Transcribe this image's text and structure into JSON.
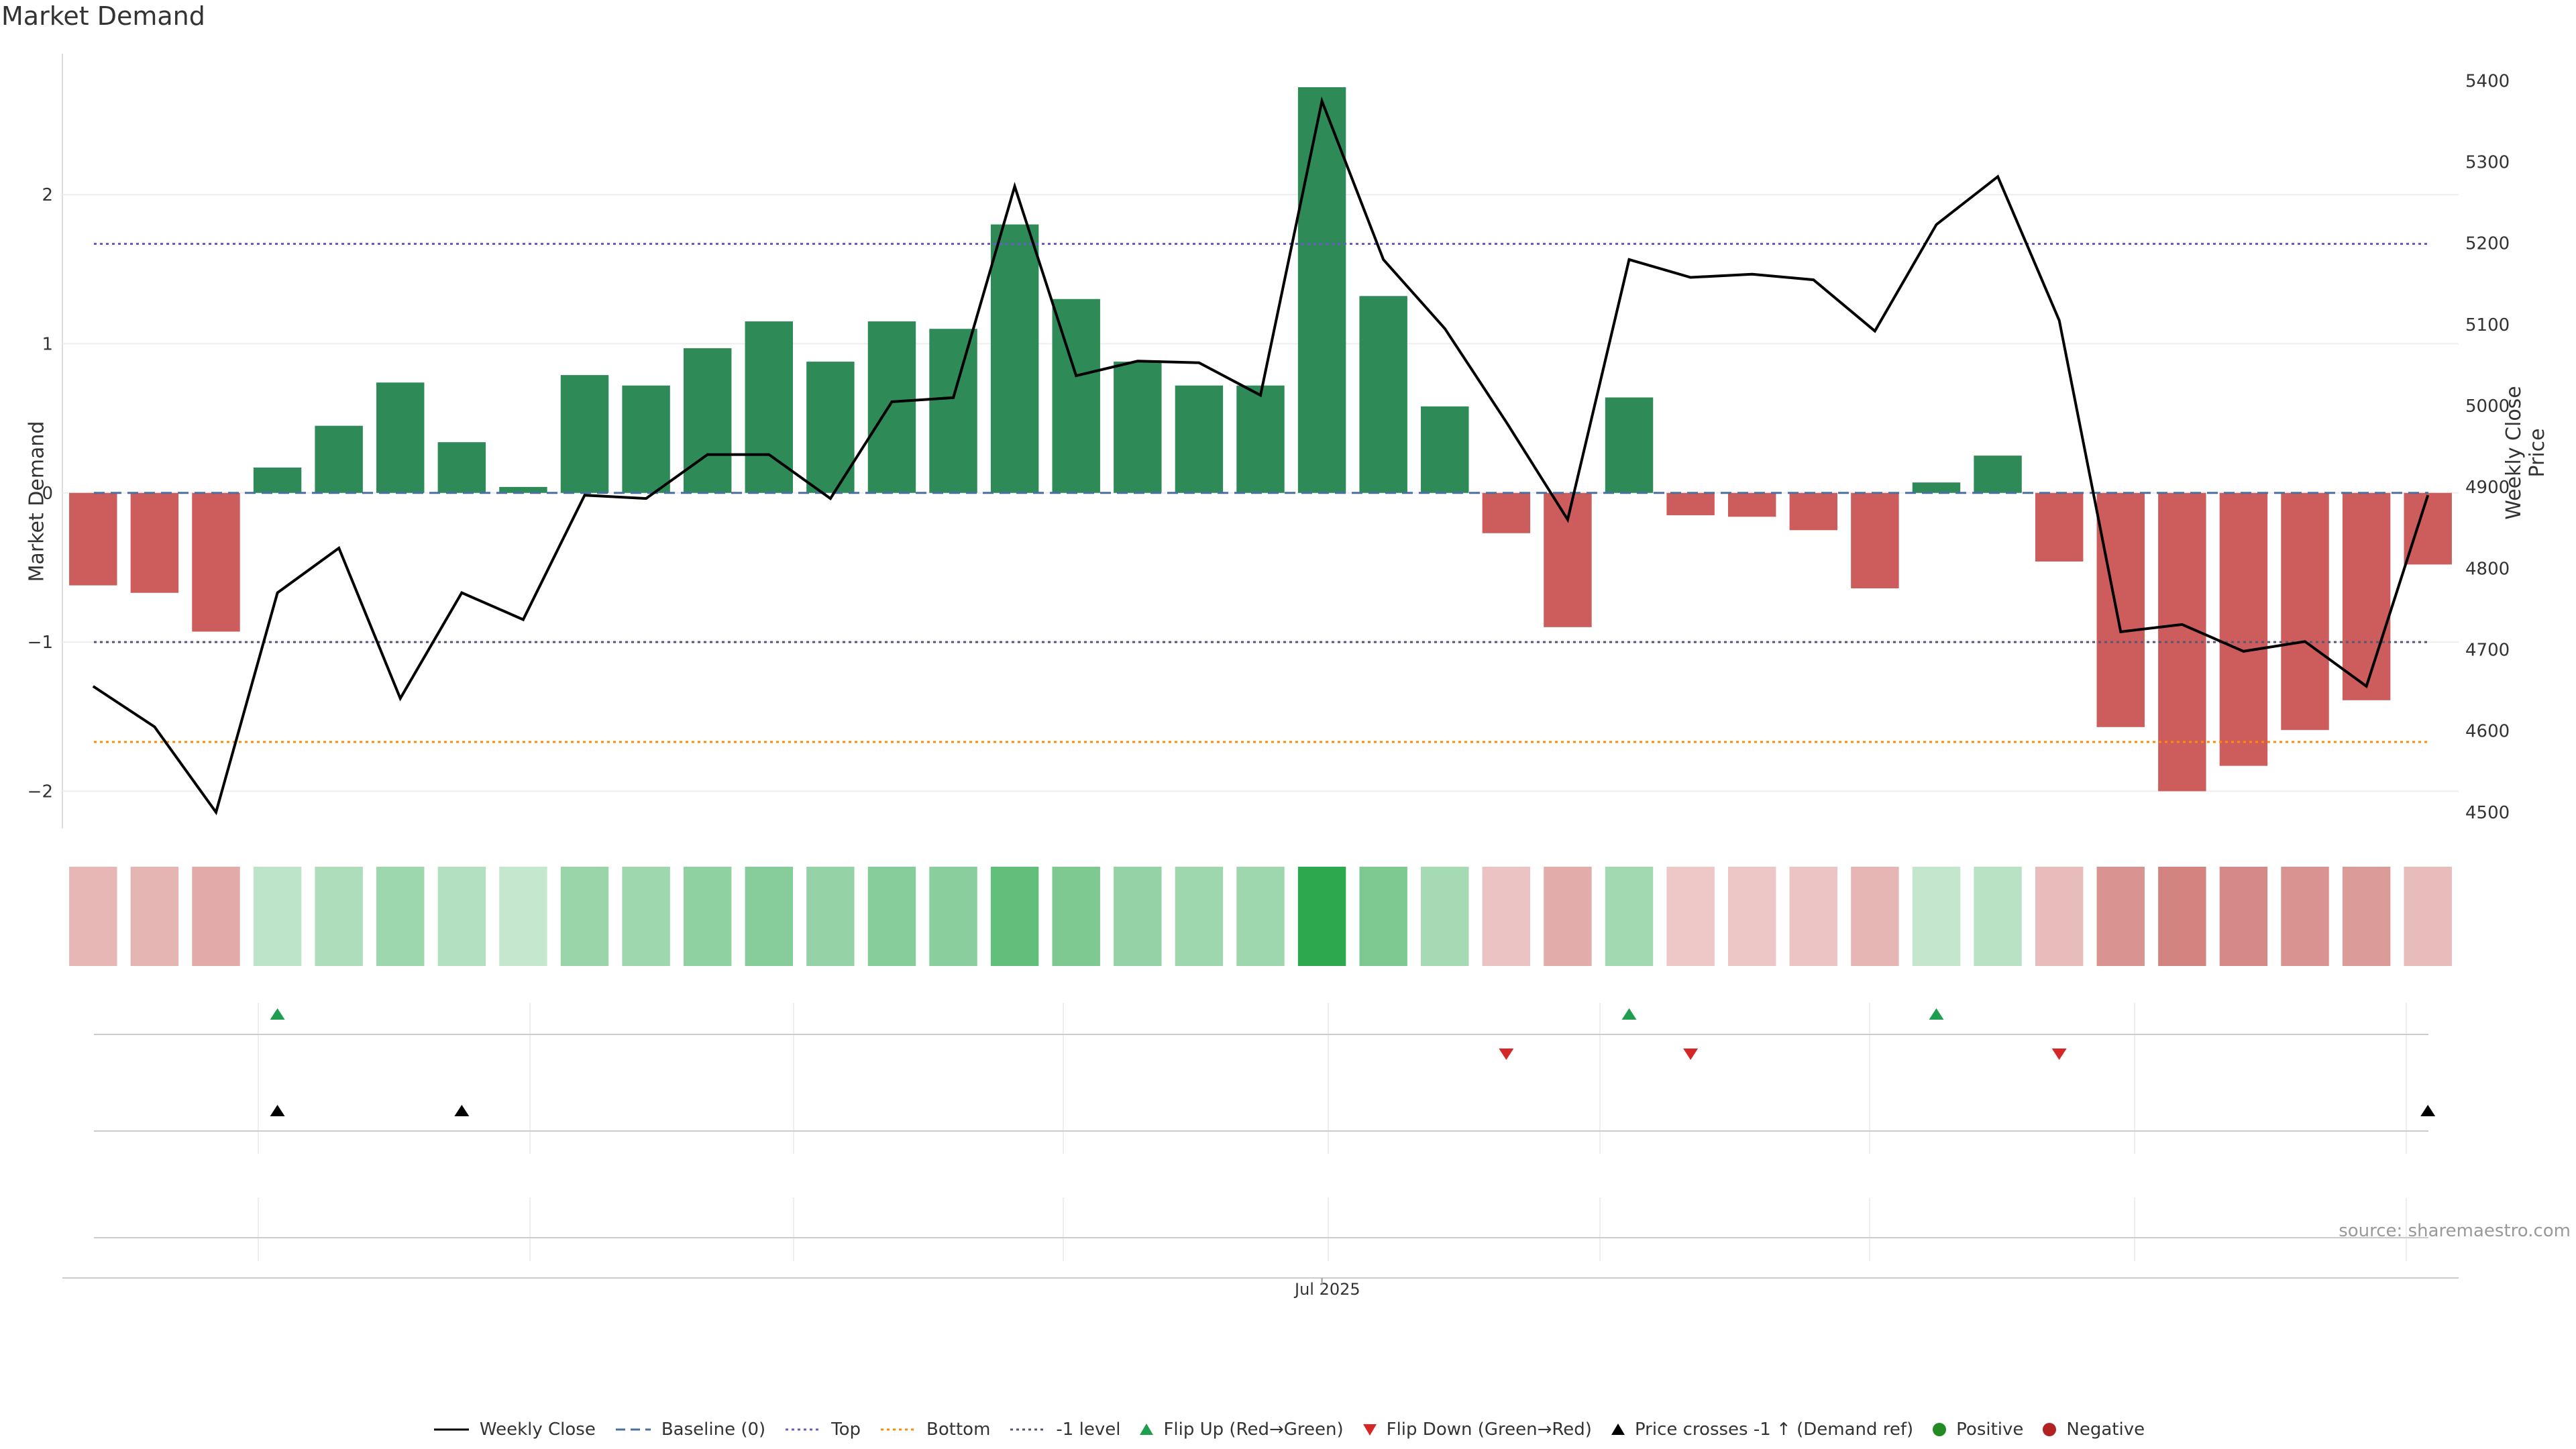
{
  "title": "Market Demand",
  "source": "source: sharemaestro.com",
  "colors": {
    "positive": "#2e8b57",
    "negative": "#cd5c5c",
    "price": "#000000",
    "baseline": "#4a6fa5",
    "top": "#6a5acd",
    "bottom": "#ff8c00",
    "minus_one": "#555577",
    "flip_up": "#1f9e4f",
    "flip_down": "#d62728",
    "cross": "#000000",
    "pos_dot": "#228b22",
    "neg_dot": "#b22222"
  },
  "chart_data": {
    "type": "bar",
    "title": "Market Demand",
    "ylabel": "Market Demand",
    "y2label": "Weekly Close Price",
    "ylim": [
      -2.25,
      2.9
    ],
    "y2lim": [
      4480,
      5425
    ],
    "yticks": [
      -2,
      -1,
      0,
      1,
      2
    ],
    "y2ticks": [
      4500,
      4600,
      4700,
      4800,
      4900,
      5000,
      5100,
      5200,
      5300,
      5400
    ],
    "xtick_labels": [
      {
        "label": "Jul 2025",
        "index": 20.5
      }
    ],
    "demand": [
      -0.62,
      -0.67,
      -0.93,
      0.17,
      0.45,
      0.74,
      0.34,
      0.04,
      0.79,
      0.72,
      0.97,
      1.15,
      0.88,
      1.15,
      1.1,
      1.8,
      1.3,
      0.88,
      0.72,
      0.72,
      2.72,
      1.32,
      0.58,
      -0.27,
      -0.9,
      0.64,
      -0.15,
      -0.16,
      -0.25,
      -0.64,
      0.07,
      0.25,
      -0.46,
      -1.57,
      -2.0,
      -1.83,
      -1.59,
      -1.39,
      -0.48
    ],
    "weekly_close": [
      4655,
      4605,
      4500,
      4770,
      4825,
      4640,
      4770,
      4737,
      4890,
      4886,
      4940,
      4940,
      4886,
      5005,
      5010,
      5270,
      5037,
      5055,
      5053,
      5013,
      5375,
      5180,
      5095,
      4980,
      4860,
      5180,
      5158,
      5162,
      5155,
      5092,
      5223,
      5282,
      5105,
      4722,
      4731,
      4698,
      4710,
      4655,
      4890
    ],
    "levels": {
      "baseline": 0,
      "top": 1.67,
      "bottom": -1.67,
      "minus_one": -1
    },
    "flip_up_indices": [
      3,
      25,
      30
    ],
    "flip_down_indices": [
      23,
      26,
      32
    ],
    "price_cross_indices": [
      3,
      6,
      38
    ],
    "legend": [
      "Weekly Close",
      "Baseline (0)",
      "Top",
      "Bottom",
      "-1 level",
      "Flip Up (Red→Green)",
      "Flip Down (Green→Red)",
      "Price crosses -1 ↑ (Demand ref)",
      "Positive",
      "Negative"
    ]
  }
}
